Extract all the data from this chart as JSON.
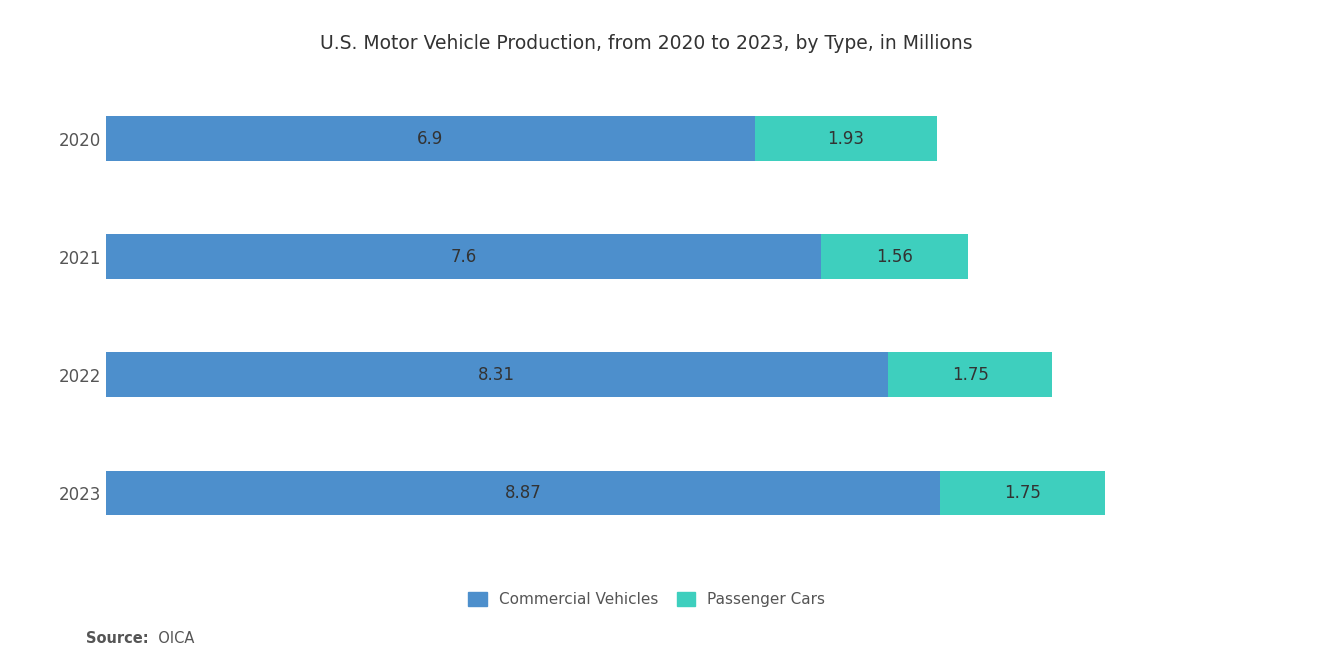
{
  "title": "U.S. Motor Vehicle Production, from 2020 to 2023, by Type, in Millions",
  "years": [
    "2020",
    "2021",
    "2022",
    "2023"
  ],
  "commercial_vehicles": [
    6.9,
    7.6,
    8.31,
    8.87
  ],
  "passenger_cars": [
    1.93,
    1.56,
    1.75,
    1.75
  ],
  "commercial_color": "#4d8fcc",
  "passenger_color": "#3ecfbe",
  "background_color": "#ffffff",
  "bar_height": 0.38,
  "xlim": [
    0,
    11.5
  ],
  "title_fontsize": 13.5,
  "label_fontsize": 12,
  "ytick_fontsize": 12,
  "source_bold": "Source:",
  "source_normal": "  OICA",
  "legend_labels": [
    "Commercial Vehicles",
    "Passenger Cars"
  ],
  "text_color": "#555555",
  "bar_label_color": "#333333"
}
